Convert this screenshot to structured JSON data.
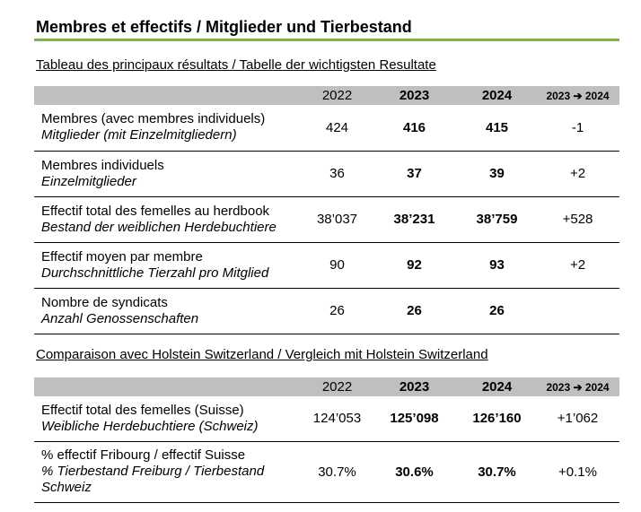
{
  "title": "Membres et effectifs / Mitglieder und Tierbestand",
  "section1": {
    "heading": "Tableau des principaux résultats / Tabelle der wichtigsten Resultate",
    "headers": [
      "",
      "2022",
      "2023",
      "2024",
      "2023 ➔ 2024"
    ],
    "rows": [
      {
        "fr": "Membres (avec membres individuels)",
        "de": "Mitglieder (mit Einzelmitgliedern)",
        "y2022": "424",
        "y2023": "416",
        "y2024": "415",
        "delta": "-1"
      },
      {
        "fr": "Membres individuels",
        "de": "Einzelmitglieder",
        "y2022": "36",
        "y2023": "37",
        "y2024": "39",
        "delta": "+2"
      },
      {
        "fr": "Effectif total des femelles au herdbook",
        "de": "Bestand der weiblichen Herdebuchtiere",
        "y2022": "38’037",
        "y2023": "38’231",
        "y2024": "38’759",
        "delta": "+528"
      },
      {
        "fr": "Effectif moyen par membre",
        "de": "Durchschnittliche Tierzahl pro Mitglied",
        "y2022": "90",
        "y2023": "92",
        "y2024": "93",
        "delta": "+2"
      },
      {
        "fr": "Nombre de syndicats",
        "de": "Anzahl Genossenschaften",
        "y2022": "26",
        "y2023": "26",
        "y2024": "26",
        "delta": ""
      }
    ]
  },
  "section2": {
    "heading": "Comparaison avec Holstein Switzerland / Vergleich mit Holstein Switzerland",
    "headers": [
      "",
      "2022",
      "2023",
      "2024",
      "2023 ➔ 2024"
    ],
    "rows": [
      {
        "fr": "Effectif total des femelles (Suisse)",
        "de": "Weibliche Herdebuchtiere (Schweiz)",
        "y2022": "124’053",
        "y2023": "125’098",
        "y2024": "126’160",
        "delta": "+1’062"
      },
      {
        "fr": "% effectif Fribourg / effectif Suisse",
        "de": "% Tierbestand Freiburg / Tierbestand Schweiz",
        "y2022": "30.7%",
        "y2023": "30.6%",
        "y2024": "30.7%",
        "delta": "+0.1%"
      }
    ]
  },
  "colors": {
    "accent_rule": "#7fb24a",
    "header_bg": "#bfbfbf"
  }
}
